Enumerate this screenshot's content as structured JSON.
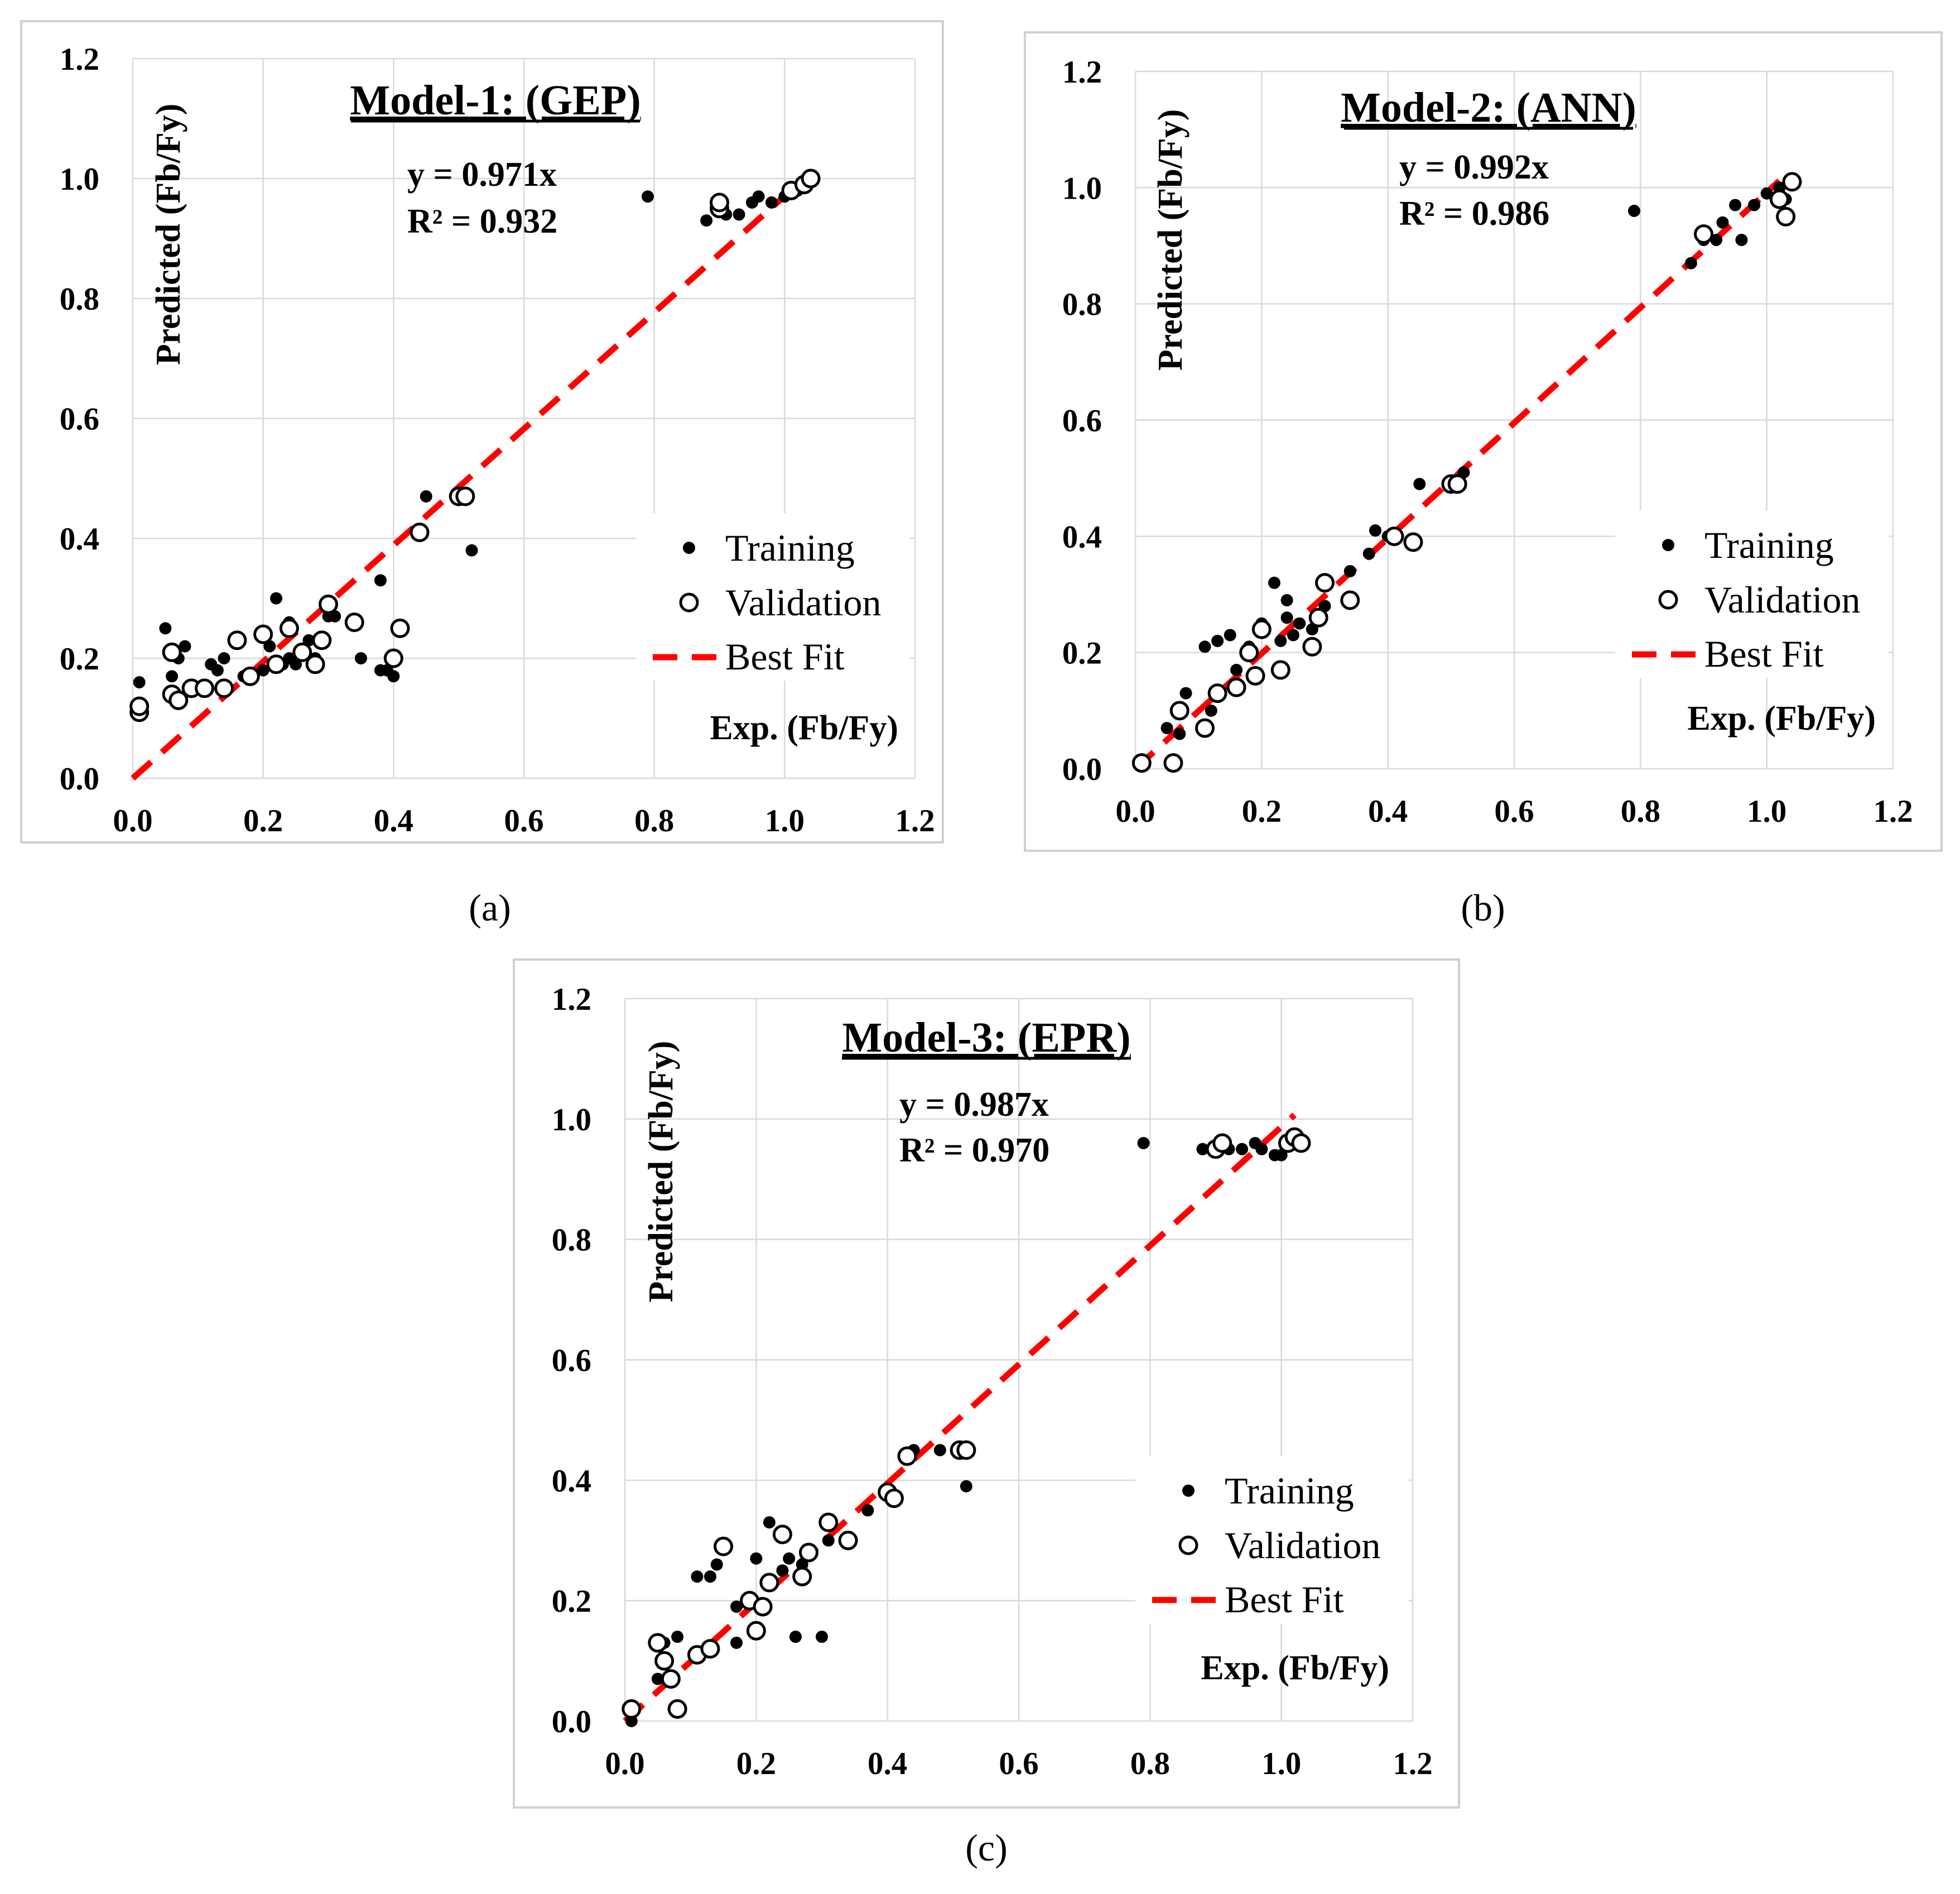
{
  "chart_data": [
    {
      "type": "scatter",
      "title": "Model-1: (GEP)",
      "caption": "(a)",
      "equation": "y = 0.971x",
      "r2": "R² = 0.932",
      "xlabel": "Exp. (Fb/Fy)",
      "ylabel": "Predicted (Fb/Fy)",
      "xlim": [
        0,
        1.2
      ],
      "ylim": [
        0,
        1.2
      ],
      "xticks": [
        "0.0",
        "0.2",
        "0.4",
        "0.6",
        "0.8",
        "1.0",
        "1.2"
      ],
      "yticks": [
        "0.0",
        "0.2",
        "0.4",
        "0.6",
        "0.8",
        "1.0",
        "1.2"
      ],
      "fit_slope": 0.971,
      "legend": {
        "training": "Training",
        "validation": "Validation",
        "best_fit": "Best Fit"
      },
      "training": [
        [
          0.01,
          0.16
        ],
        [
          0.05,
          0.25
        ],
        [
          0.06,
          0.17
        ],
        [
          0.07,
          0.2
        ],
        [
          0.08,
          0.22
        ],
        [
          0.12,
          0.19
        ],
        [
          0.13,
          0.18
        ],
        [
          0.14,
          0.2
        ],
        [
          0.17,
          0.17
        ],
        [
          0.2,
          0.18
        ],
        [
          0.21,
          0.22
        ],
        [
          0.22,
          0.3
        ],
        [
          0.23,
          0.19
        ],
        [
          0.24,
          0.26
        ],
        [
          0.24,
          0.2
        ],
        [
          0.25,
          0.19
        ],
        [
          0.26,
          0.21
        ],
        [
          0.27,
          0.23
        ],
        [
          0.28,
          0.2
        ],
        [
          0.3,
          0.27
        ],
        [
          0.31,
          0.27
        ],
        [
          0.35,
          0.2
        ],
        [
          0.38,
          0.33
        ],
        [
          0.38,
          0.18
        ],
        [
          0.39,
          0.18
        ],
        [
          0.4,
          0.17
        ],
        [
          0.45,
          0.47
        ],
        [
          0.52,
          0.38
        ],
        [
          0.79,
          0.97
        ],
        [
          0.88,
          0.93
        ],
        [
          0.9,
          0.95
        ],
        [
          0.91,
          0.94
        ],
        [
          0.93,
          0.94
        ],
        [
          0.95,
          0.96
        ],
        [
          0.96,
          0.97
        ],
        [
          0.98,
          0.96
        ],
        [
          1.0,
          0.97
        ],
        [
          1.02,
          0.98
        ]
      ],
      "validation": [
        [
          0.01,
          0.11
        ],
        [
          0.01,
          0.12
        ],
        [
          0.06,
          0.21
        ],
        [
          0.06,
          0.14
        ],
        [
          0.07,
          0.13
        ],
        [
          0.09,
          0.15
        ],
        [
          0.11,
          0.15
        ],
        [
          0.14,
          0.15
        ],
        [
          0.16,
          0.23
        ],
        [
          0.18,
          0.17
        ],
        [
          0.2,
          0.24
        ],
        [
          0.22,
          0.19
        ],
        [
          0.24,
          0.25
        ],
        [
          0.26,
          0.21
        ],
        [
          0.28,
          0.19
        ],
        [
          0.29,
          0.23
        ],
        [
          0.3,
          0.29
        ],
        [
          0.34,
          0.26
        ],
        [
          0.4,
          0.2
        ],
        [
          0.41,
          0.25
        ],
        [
          0.44,
          0.41
        ],
        [
          0.5,
          0.47
        ],
        [
          0.51,
          0.47
        ],
        [
          0.9,
          0.95
        ],
        [
          0.9,
          0.96
        ],
        [
          1.01,
          0.98
        ],
        [
          1.03,
          0.99
        ],
        [
          1.04,
          1.0
        ]
      ]
    },
    {
      "type": "scatter",
      "title": "Model-2: (ANN)",
      "caption": "(b)",
      "equation": "y = 0.992x",
      "r2": "R² = 0.986",
      "xlabel": "Exp. (Fb/Fy)",
      "ylabel": "Predicted (Fb/Fy)",
      "xlim": [
        0,
        1.2
      ],
      "ylim": [
        0,
        1.2
      ],
      "xticks": [
        "0.0",
        "0.2",
        "0.4",
        "0.6",
        "0.8",
        "1.0",
        "1.2"
      ],
      "yticks": [
        "0.0",
        "0.2",
        "0.4",
        "0.6",
        "0.8",
        "1.0",
        "1.2"
      ],
      "fit_slope": 0.992,
      "legend": {
        "training": "Training",
        "validation": "Validation",
        "best_fit": "Best Fit"
      },
      "training": [
        [
          0.05,
          0.07
        ],
        [
          0.07,
          0.06
        ],
        [
          0.08,
          0.13
        ],
        [
          0.11,
          0.21
        ],
        [
          0.12,
          0.1
        ],
        [
          0.13,
          0.22
        ],
        [
          0.15,
          0.23
        ],
        [
          0.16,
          0.17
        ],
        [
          0.18,
          0.21
        ],
        [
          0.2,
          0.25
        ],
        [
          0.22,
          0.32
        ],
        [
          0.23,
          0.22
        ],
        [
          0.24,
          0.26
        ],
        [
          0.24,
          0.29
        ],
        [
          0.25,
          0.23
        ],
        [
          0.26,
          0.25
        ],
        [
          0.28,
          0.24
        ],
        [
          0.3,
          0.28
        ],
        [
          0.34,
          0.34
        ],
        [
          0.37,
          0.37
        ],
        [
          0.38,
          0.41
        ],
        [
          0.4,
          0.4
        ],
        [
          0.45,
          0.49
        ],
        [
          0.5,
          0.49
        ],
        [
          0.52,
          0.51
        ],
        [
          0.79,
          0.96
        ],
        [
          0.88,
          0.87
        ],
        [
          0.9,
          0.91
        ],
        [
          0.92,
          0.91
        ],
        [
          0.93,
          0.94
        ],
        [
          0.95,
          0.97
        ],
        [
          0.96,
          0.91
        ],
        [
          0.98,
          0.97
        ],
        [
          1.0,
          0.99
        ],
        [
          1.02,
          1.0
        ],
        [
          1.03,
          0.98
        ]
      ],
      "validation": [
        [
          0.01,
          0.01
        ],
        [
          0.06,
          0.01
        ],
        [
          0.07,
          0.1
        ],
        [
          0.11,
          0.07
        ],
        [
          0.13,
          0.13
        ],
        [
          0.16,
          0.14
        ],
        [
          0.18,
          0.2
        ],
        [
          0.19,
          0.16
        ],
        [
          0.2,
          0.24
        ],
        [
          0.23,
          0.17
        ],
        [
          0.28,
          0.21
        ],
        [
          0.29,
          0.26
        ],
        [
          0.3,
          0.32
        ],
        [
          0.34,
          0.29
        ],
        [
          0.41,
          0.4
        ],
        [
          0.44,
          0.39
        ],
        [
          0.5,
          0.49
        ],
        [
          0.51,
          0.49
        ],
        [
          0.9,
          0.92
        ],
        [
          1.02,
          0.98
        ],
        [
          1.03,
          0.95
        ],
        [
          1.04,
          1.01
        ]
      ]
    },
    {
      "type": "scatter",
      "title": "Model-3: (EPR)",
      "caption": "(c)",
      "equation": "y = 0.987x",
      "r2": "R² = 0.970",
      "xlabel": "Exp. (Fb/Fy)",
      "ylabel": "Predicted (Fb/Fy)",
      "xlim": [
        0,
        1.2
      ],
      "ylim": [
        0,
        1.2
      ],
      "xticks": [
        "0.0",
        "0.2",
        "0.4",
        "0.6",
        "0.8",
        "1.0",
        "1.2"
      ],
      "yticks": [
        "0.0",
        "0.2",
        "0.4",
        "0.6",
        "0.8",
        "1.0",
        "1.2"
      ],
      "fit_slope": 0.987,
      "legend": {
        "training": "Training",
        "validation": "Validation",
        "best_fit": "Best Fit"
      },
      "training": [
        [
          0.01,
          0.0
        ],
        [
          0.05,
          0.07
        ],
        [
          0.06,
          0.13
        ],
        [
          0.08,
          0.14
        ],
        [
          0.11,
          0.24
        ],
        [
          0.13,
          0.24
        ],
        [
          0.14,
          0.26
        ],
        [
          0.17,
          0.19
        ],
        [
          0.17,
          0.13
        ],
        [
          0.2,
          0.27
        ],
        [
          0.21,
          0.19
        ],
        [
          0.22,
          0.33
        ],
        [
          0.24,
          0.25
        ],
        [
          0.24,
          0.31
        ],
        [
          0.25,
          0.27
        ],
        [
          0.26,
          0.14
        ],
        [
          0.27,
          0.26
        ],
        [
          0.3,
          0.14
        ],
        [
          0.31,
          0.3
        ],
        [
          0.37,
          0.35
        ],
        [
          0.44,
          0.45
        ],
        [
          0.48,
          0.45
        ],
        [
          0.52,
          0.39
        ],
        [
          0.79,
          0.96
        ],
        [
          0.88,
          0.95
        ],
        [
          0.92,
          0.95
        ],
        [
          0.94,
          0.95
        ],
        [
          0.96,
          0.96
        ],
        [
          0.97,
          0.95
        ],
        [
          0.99,
          0.94
        ],
        [
          1.0,
          0.94
        ],
        [
          1.02,
          0.96
        ]
      ],
      "validation": [
        [
          0.01,
          0.02
        ],
        [
          0.05,
          0.13
        ],
        [
          0.06,
          0.1
        ],
        [
          0.07,
          0.07
        ],
        [
          0.08,
          0.02
        ],
        [
          0.11,
          0.11
        ],
        [
          0.13,
          0.12
        ],
        [
          0.15,
          0.29
        ],
        [
          0.19,
          0.2
        ],
        [
          0.2,
          0.15
        ],
        [
          0.21,
          0.19
        ],
        [
          0.22,
          0.23
        ],
        [
          0.24,
          0.31
        ],
        [
          0.27,
          0.24
        ],
        [
          0.28,
          0.28
        ],
        [
          0.31,
          0.33
        ],
        [
          0.34,
          0.3
        ],
        [
          0.4,
          0.38
        ],
        [
          0.41,
          0.37
        ],
        [
          0.43,
          0.44
        ],
        [
          0.51,
          0.45
        ],
        [
          0.52,
          0.45
        ],
        [
          0.9,
          0.95
        ],
        [
          0.91,
          0.96
        ],
        [
          1.01,
          0.96
        ],
        [
          1.02,
          0.97
        ],
        [
          1.03,
          0.96
        ]
      ]
    }
  ]
}
